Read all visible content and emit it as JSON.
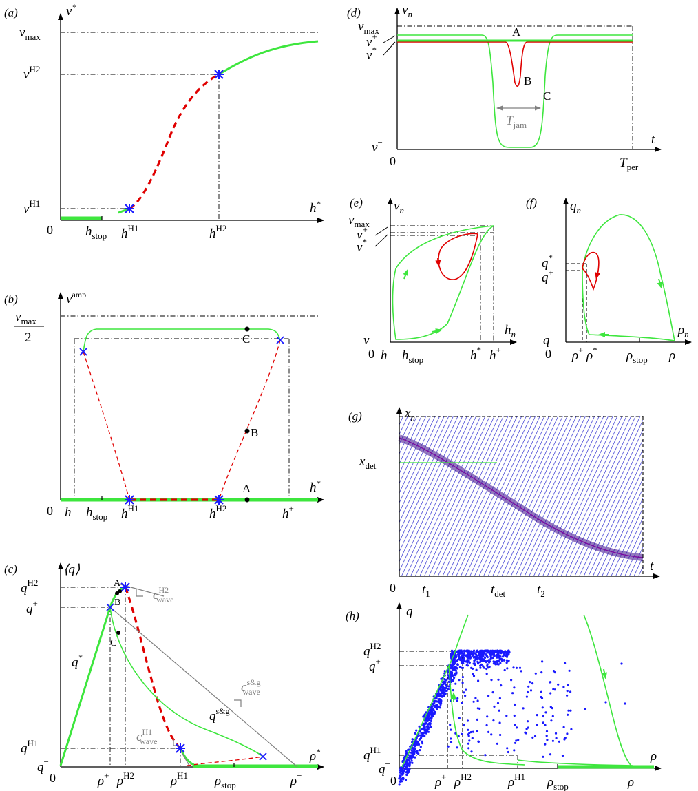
{
  "panels": {
    "a": {
      "tag": "(a)",
      "y_label": "v",
      "y_sup": "*",
      "x_label": "h",
      "x_sup": "*",
      "ticks_y": [
        {
          "t": "v",
          "s": "max",
          "kind": "sub"
        },
        {
          "t": "v",
          "s": "H2",
          "kind": "sup"
        },
        {
          "t": "v",
          "s": "H1",
          "kind": "sup"
        }
      ],
      "ticks_x": [
        {
          "t": "h",
          "s": "stop",
          "kind": "sub"
        },
        {
          "t": "h",
          "s": "H1",
          "kind": "sup"
        },
        {
          "t": "h",
          "s": "H2",
          "kind": "sup"
        }
      ],
      "origin": "0"
    },
    "b": {
      "tag": "(b)",
      "y_label": "v",
      "y_sup": "amp",
      "y_frac_num": "v",
      "y_frac_num_sub": "max",
      "y_frac_den": "2",
      "x_label": "h",
      "x_sup": "*",
      "ticks_x": [
        {
          "t": "h",
          "s": "−",
          "kind": "sup"
        },
        {
          "t": "h",
          "s": "stop",
          "kind": "sub"
        },
        {
          "t": "h",
          "s": "H1",
          "kind": "sup"
        },
        {
          "t": "h",
          "s": "H2",
          "kind": "sup"
        },
        {
          "t": "h",
          "s": "+",
          "kind": "sup"
        }
      ],
      "points": [
        "A",
        "B",
        "C"
      ],
      "origin": "0"
    },
    "c": {
      "tag": "(c)",
      "y_label": "⟨q⟩",
      "x_label": "ρ",
      "x_sup": "*",
      "ticks_y": [
        {
          "t": "q",
          "s": "H2",
          "kind": "sup"
        },
        {
          "t": "q",
          "s": "+",
          "kind": "sup"
        },
        {
          "t": "q",
          "s": "H1",
          "kind": "sup"
        },
        {
          "t": "q",
          "s": "−",
          "kind": "sup"
        }
      ],
      "ticks_x": [
        {
          "t": "ρ",
          "s": "+",
          "kind": "sup"
        },
        {
          "t": "ρ",
          "s": "H2",
          "kind": "sup"
        },
        {
          "t": "ρ",
          "s": "H1",
          "kind": "sup"
        },
        {
          "t": "ρ",
          "s": "stop",
          "kind": "sub"
        },
        {
          "t": "ρ",
          "s": "−",
          "kind": "sup"
        }
      ],
      "curve_labels": {
        "q_star": "q",
        "q_star_sup": "*",
        "q_sg": "q",
        "q_sg_sup": "s&g"
      },
      "wave_labels": [
        {
          "t": "c",
          "sup": "H2",
          "sub": "wave"
        },
        {
          "t": "c",
          "sup": "s&g",
          "sub": "wave"
        },
        {
          "t": "c",
          "sup": "H1",
          "sub": "wave"
        }
      ],
      "points": [
        "A",
        "B",
        "C"
      ],
      "origin": "0"
    },
    "d": {
      "tag": "(d)",
      "y_label": "v",
      "y_sub": "n",
      "x_label": "t",
      "ticks_y": [
        {
          "t": "v",
          "s": "max",
          "kind": "sub"
        },
        {
          "t": "v",
          "s": "+",
          "kind": "sup"
        },
        {
          "t": "v",
          "s": "*",
          "kind": "sup"
        },
        {
          "t": "v",
          "s": "−",
          "kind": "sup"
        }
      ],
      "ticks_x": [
        {
          "t": "T",
          "s": "per",
          "kind": "sub"
        }
      ],
      "t_jam": {
        "t": "T",
        "s": "jam"
      },
      "points": [
        "A",
        "B",
        "C"
      ],
      "origin": "0"
    },
    "e": {
      "tag": "(e)",
      "y_label": "v",
      "y_sub": "n",
      "x_label": "h",
      "x_sub": "n",
      "ticks_y": [
        {
          "t": "v",
          "s": "max",
          "kind": "sub"
        },
        {
          "t": "v",
          "s": "+",
          "kind": "sup"
        },
        {
          "t": "v",
          "s": "*",
          "kind": "sup"
        },
        {
          "t": "v",
          "s": "−",
          "kind": "sup"
        }
      ],
      "ticks_x": [
        {
          "t": "h",
          "s": "−",
          "kind": "sup"
        },
        {
          "t": "h",
          "s": "stop",
          "kind": "sub"
        },
        {
          "t": "h",
          "s": "*",
          "kind": "sup"
        },
        {
          "t": "h",
          "s": "+",
          "kind": "sup"
        }
      ],
      "origin": "0"
    },
    "f": {
      "tag": "(f)",
      "y_label": "q",
      "y_sub": "n",
      "x_label": "ρ",
      "x_sub": "n",
      "ticks_y": [
        {
          "t": "q",
          "s": "*",
          "kind": "sup"
        },
        {
          "t": "q",
          "s": "+",
          "kind": "sup"
        },
        {
          "t": "q",
          "s": "−",
          "kind": "sup"
        }
      ],
      "ticks_x": [
        {
          "t": "ρ",
          "s": "+",
          "kind": "sup"
        },
        {
          "t": "ρ",
          "s": "*",
          "kind": "sup"
        },
        {
          "t": "ρ",
          "s": "stop",
          "kind": "sub"
        },
        {
          "t": "ρ",
          "s": "−",
          "kind": "sup"
        }
      ],
      "origin": "0"
    },
    "g": {
      "tag": "(g)",
      "y_label": "x",
      "y_sub": "n",
      "x_label": "t",
      "ticks_y": [
        {
          "t": "x",
          "s": "det",
          "kind": "sub"
        }
      ],
      "ticks_x": [
        {
          "t": "t",
          "s": "1",
          "kind": "sub"
        },
        {
          "t": "t",
          "s": "det",
          "kind": "sub"
        },
        {
          "t": "t",
          "s": "2",
          "kind": "sub"
        }
      ],
      "origin": "0"
    },
    "h": {
      "tag": "(h)",
      "y_label": "q",
      "x_label": "ρ",
      "ticks_y": [
        {
          "t": "q",
          "s": "H2",
          "kind": "sup"
        },
        {
          "t": "q",
          "s": "+",
          "kind": "sup"
        },
        {
          "t": "q",
          "s": "H1",
          "kind": "sup"
        },
        {
          "t": "q",
          "s": "−",
          "kind": "sup"
        }
      ],
      "ticks_x": [
        {
          "t": "ρ",
          "s": "+",
          "kind": "sup"
        },
        {
          "t": "ρ",
          "s": "H2",
          "kind": "sup"
        },
        {
          "t": "ρ",
          "s": "H1",
          "kind": "sup"
        },
        {
          "t": "ρ",
          "s": "stop",
          "kind": "sub"
        },
        {
          "t": "ρ",
          "s": "−",
          "kind": "sup"
        }
      ],
      "origin": "0"
    }
  },
  "colors": {
    "stable": "#3ee63e",
    "unstable": "#e00000",
    "bifurcation": "#1a1aff",
    "wave": "#808080",
    "trajectories": "#1a1aff"
  },
  "chart_data": [
    {
      "panel": "a",
      "type": "line",
      "title": "",
      "xlabel": "h*",
      "ylabel": "v*",
      "series": [
        {
          "name": "",
          "values": []
        }
      ]
    },
    {
      "panel": "b",
      "type": "line",
      "title": "",
      "xlabel": "h*",
      "ylabel": "v^amp",
      "series": [
        {
          "name": "",
          "values": []
        }
      ]
    },
    {
      "panel": "c",
      "type": "line",
      "title": "",
      "xlabel": "ρ*",
      "ylabel": "⟨q⟩",
      "series": [
        {
          "name": "",
          "values": []
        }
      ]
    },
    {
      "panel": "d",
      "type": "line",
      "title": "",
      "xlabel": "t",
      "ylabel": "v_n",
      "series": [
        {
          "name": "",
          "values": []
        }
      ]
    },
    {
      "panel": "e",
      "type": "line",
      "title": "",
      "xlabel": "h_n",
      "ylabel": "v_n",
      "series": [
        {
          "name": "",
          "values": []
        }
      ]
    },
    {
      "panel": "f",
      "type": "line",
      "title": "",
      "xlabel": "ρ_n",
      "ylabel": "q_n",
      "series": [
        {
          "name": "",
          "values": []
        }
      ]
    },
    {
      "panel": "g",
      "type": "line",
      "title": "",
      "xlabel": "t",
      "ylabel": "x_n",
      "series": [
        {
          "name": "",
          "values": []
        }
      ]
    },
    {
      "panel": "h",
      "type": "scatter",
      "title": "",
      "xlabel": "ρ",
      "ylabel": "q",
      "series": [
        {
          "name": "",
          "values": []
        }
      ]
    }
  ]
}
